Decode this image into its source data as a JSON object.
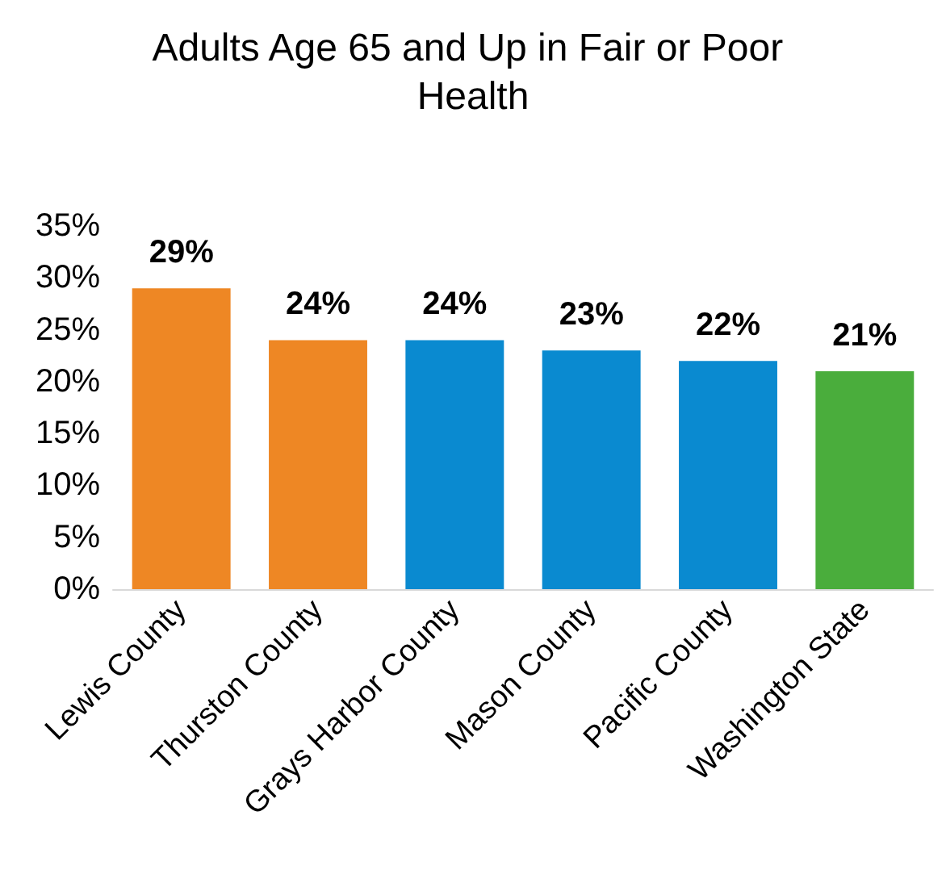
{
  "chart_data": {
    "type": "bar",
    "title": "Adults Age 65 and Up in Fair or Poor Health",
    "categories": [
      "Lewis County",
      "Thurston County",
      "Grays Harbor County",
      "Mason County",
      "Pacific County",
      "Washington State"
    ],
    "values": [
      29,
      24,
      24,
      23,
      22,
      21
    ],
    "colors": [
      "#ee8724",
      "#ee8724",
      "#0a8ad0",
      "#0a8ad0",
      "#0a8ad0",
      "#4aad3c"
    ],
    "value_labels": [
      "29%",
      "24%",
      "24%",
      "23%",
      "22%",
      "21%"
    ],
    "ylim": [
      0,
      35
    ],
    "yticks": [
      {
        "value": 0,
        "label": "0%"
      },
      {
        "value": 5,
        "label": "5%"
      },
      {
        "value": 10,
        "label": "10%"
      },
      {
        "value": 15,
        "label": "15%"
      },
      {
        "value": 20,
        "label": "20%"
      },
      {
        "value": 25,
        "label": "25%"
      },
      {
        "value": 30,
        "label": "30%"
      },
      {
        "value": 35,
        "label": "35%"
      }
    ],
    "grid": false
  }
}
